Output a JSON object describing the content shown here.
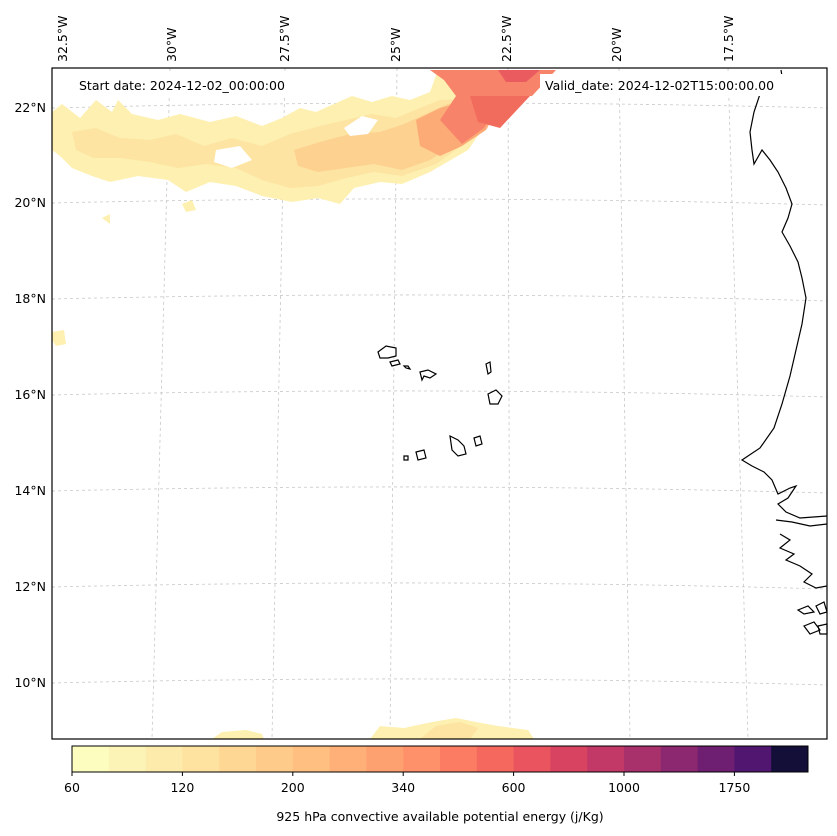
{
  "header": {
    "start_date": "Start date: 2024-12-02_00:00:00",
    "valid_date": "Valid_date: 2024-12-02T15:00:00.00"
  },
  "longitude_labels": [
    "32.5°W",
    "30°W",
    "27.5°W",
    "25°W",
    "22.5°W",
    "20°W",
    "17.5°W"
  ],
  "latitude_labels": [
    "22°N",
    "20°N",
    "18°N",
    "16°N",
    "14°N",
    "12°N",
    "10°N"
  ],
  "colorbar": {
    "label": "925 hPa convective available potential energy (j/Kg)",
    "tick_labels": [
      "60",
      "120",
      "200",
      "340",
      "600",
      "1000",
      "1750"
    ],
    "colors": [
      "#fcfdbf",
      "#fcf4b6",
      "#fdebab",
      "#fde2a0",
      "#fed795",
      "#fecb8a",
      "#febf80",
      "#feb078",
      "#fea170",
      "#fe906a",
      "#fb7c63",
      "#f5685e",
      "#e9545f",
      "#d84362",
      "#c23866",
      "#a8306b",
      "#8c286f",
      "#6e1f71",
      "#511670",
      "#130f38"
    ]
  },
  "map_extent": {
    "lon_min": -33,
    "lon_max": -15.7,
    "lat_min": 8.9,
    "lat_max": 22.7
  },
  "cape_field_colors": {
    "light": "#fdf0b0",
    "light_mid": "#fde4a2",
    "mid": "#fdd190",
    "orange": "#fcaa76",
    "red_orange": "#f7836a",
    "red": "#f26c5e",
    "deep": "#ea5b60"
  },
  "coastline_color": "#000000",
  "grid_color": "#c8c8c8"
}
